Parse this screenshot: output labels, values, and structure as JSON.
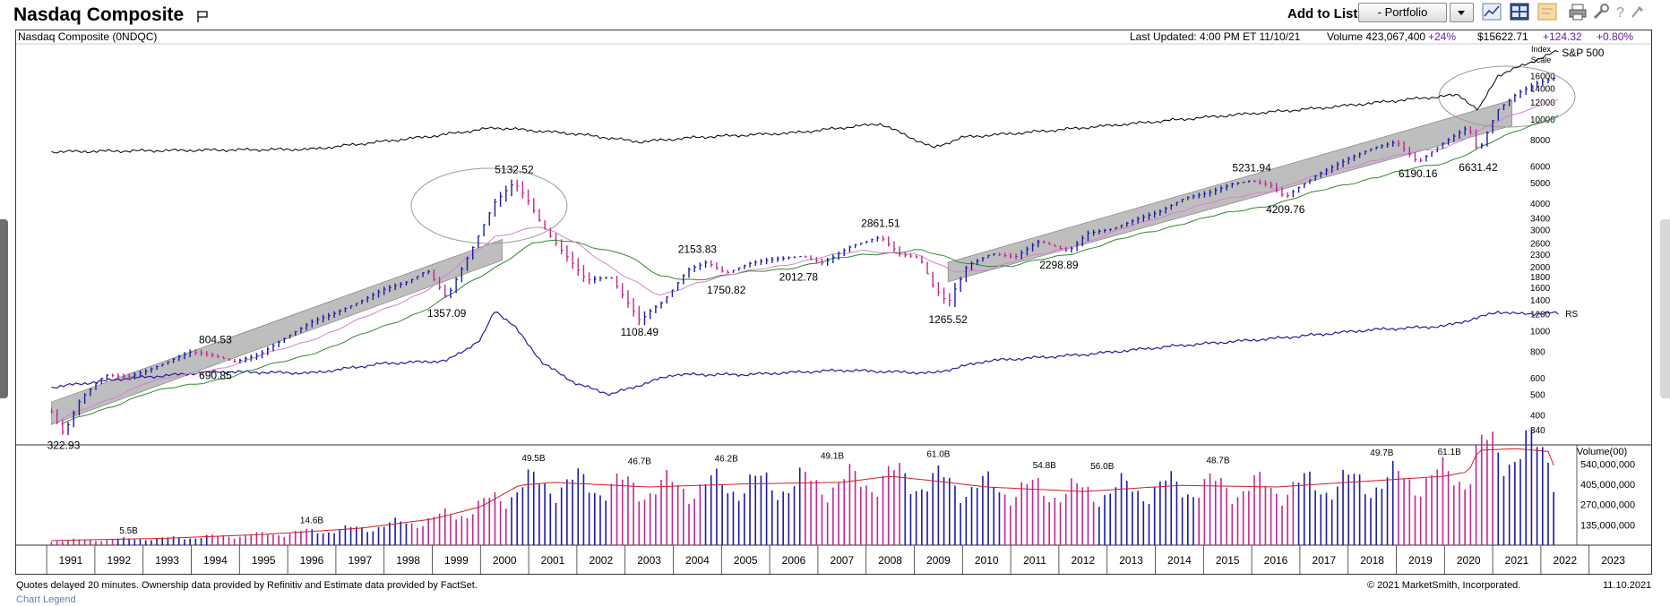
{
  "header": {
    "title": "Nasdaq Composite",
    "add_to_list_label": "Add to List:",
    "portfolio_value": "- Portfolio",
    "toolbar_icons": [
      "chart-style-icon",
      "layout-icon",
      "note-icon",
      "print-icon",
      "tools-icon",
      "help-icon",
      "more-icon"
    ]
  },
  "info_bar": {
    "symbol_label": "Nasdaq Composite   (0NDQC)",
    "last_updated": "Last Updated: 4:00 PM ET 11/10/21",
    "volume": "Volume 423,067,400",
    "volume_pct": "+24%",
    "price": "$15622.71",
    "change": "+124.32",
    "change_pct": "+0.80%"
  },
  "footer": {
    "note": "Quotes delayed 20 minutes. Ownership data provided by Refinitiv and Estimate data provided by FactSet.",
    "copyright": "© 2021 MarketSmith, Incorporated.",
    "date": "11.10.2021",
    "legend_link": "Chart Legend"
  },
  "colors": {
    "up_bar": "#1a1aa6",
    "down_bar": "#c2278f",
    "rs_line": "#2a1aa0",
    "ma_short": "#d97fd0",
    "ma_long": "#2e8b2e",
    "volume_avg": "#d32020",
    "channel_fill": "#b3b3b3",
    "sp500_line": "#000000"
  },
  "chart_data": {
    "type": "line",
    "title": "Nasdaq Composite",
    "scale": "log",
    "y_axis_title": "Index Scale",
    "y_ticks": [
      340,
      400,
      500,
      600,
      800,
      1000,
      1200,
      1400,
      1600,
      1800,
      2000,
      2300,
      2600,
      3000,
      3400,
      4000,
      5000,
      6000,
      8000,
      10000,
      12000,
      14000,
      16000
    ],
    "x_ticks": [
      "1991",
      "1992",
      "1993",
      "1994",
      "1995",
      "1996",
      "1997",
      "1998",
      "1999",
      "2000",
      "2001",
      "2002",
      "2003",
      "2004",
      "2005",
      "2006",
      "2007",
      "2008",
      "2009",
      "2010",
      "2011",
      "2012",
      "2013",
      "2014",
      "2015",
      "2016",
      "2017",
      "2018",
      "2019",
      "2020",
      "2021",
      "2022",
      "2023"
    ],
    "price_series": {
      "name": "Nasdaq Composite",
      "x": [
        1990.6,
        1990.85,
        1991.2,
        1991.7,
        1992.2,
        1992.6,
        1993.0,
        1993.5,
        1994.0,
        1994.4,
        1994.9,
        1995.5,
        1996.0,
        1996.5,
        1997.0,
        1997.5,
        1998.0,
        1998.4,
        1998.8,
        1999.3,
        1999.8,
        2000.2,
        2000.5,
        2000.8,
        2001.2,
        2001.7,
        2002.2,
        2002.8,
        2003.3,
        2003.8,
        2004.2,
        2004.6,
        2005.1,
        2005.6,
        2006.2,
        2006.6,
        2007.2,
        2007.8,
        2008.2,
        2008.6,
        2008.9,
        2009.2,
        2009.6,
        2010.1,
        2010.6,
        2011.1,
        2011.7,
        2012.1,
        2012.6,
        2013.1,
        2013.6,
        2014.1,
        2014.6,
        2015.1,
        2015.5,
        2015.9,
        2016.2,
        2016.8,
        2017.4,
        2018.0,
        2018.5,
        2018.95,
        2019.5,
        2020.0,
        2020.2,
        2020.6,
        2021.0,
        2021.4,
        2021.86
      ],
      "y": [
        420,
        330,
        480,
        620,
        600,
        640,
        700,
        790,
        760,
        720,
        780,
        950,
        1100,
        1200,
        1350,
        1550,
        1700,
        1950,
        1450,
        2400,
        4100,
        5000,
        4000,
        3000,
        2300,
        1700,
        1800,
        1150,
        1400,
        1950,
        2100,
        1850,
        2050,
        2150,
        2250,
        2100,
        2550,
        2800,
        2300,
        2200,
        1560,
        1300,
        2000,
        2300,
        2250,
        2700,
        2400,
        2900,
        3000,
        3300,
        3600,
        4200,
        4500,
        5000,
        5200,
        4900,
        4300,
        5300,
        6200,
        7200,
        7800,
        6300,
        7900,
        9300,
        7000,
        11000,
        13000,
        14500,
        15600
      ]
    },
    "sp500_series": {
      "name": "S&P 500",
      "x": [
        1990.6,
        1993.0,
        1996.0,
        1998.5,
        1999.8,
        2001.5,
        2002.8,
        2004.0,
        2006.0,
        2007.8,
        2008.9,
        2009.5,
        2011.0,
        2013.0,
        2015.0,
        2017.0,
        2018.95,
        2019.8,
        2020.2,
        2020.6,
        2021.86
      ],
      "y": [
        7000,
        7100,
        7200,
        8300,
        9100,
        8500,
        7800,
        8200,
        8600,
        9500,
        7300,
        8200,
        8700,
        9500,
        10400,
        11300,
        12500,
        13000,
        11000,
        16000,
        21000
      ]
    },
    "rs_series": {
      "name": "RS",
      "x": [
        1990.6,
        1992.0,
        1994.0,
        1996.0,
        1997.5,
        1998.8,
        1999.5,
        1999.8,
        2000.2,
        2000.8,
        2001.5,
        2002.2,
        2003.5,
        2005.0,
        2007.0,
        2008.9,
        2010.0,
        2012.0,
        2014.0,
        2016.0,
        2018.0,
        2019.5,
        2020.2,
        2020.6,
        2021.0,
        2021.86
      ],
      "y": [
        540,
        590,
        640,
        630,
        700,
        720,
        900,
        1250,
        1050,
        700,
        560,
        500,
        620,
        620,
        650,
        630,
        720,
        770,
        850,
        920,
        1010,
        1050,
        1150,
        1230,
        1200,
        1210
      ]
    },
    "ma_short_series": {
      "x": [
        1990.8,
        1992.5,
        1994.5,
        1996.5,
        1998.5,
        1999.8,
        2000.7,
        2001.5,
        2002.5,
        2003.2,
        2004.0,
        2006.0,
        2007.5,
        2008.5,
        2009.3,
        2010.0,
        2012.0,
        2014.0,
        2016.0,
        2018.0,
        2019.5,
        2020.5,
        2021.86
      ],
      "y": [
        380,
        560,
        700,
        1000,
        1600,
        2800,
        3100,
        2600,
        1800,
        1450,
        1700,
        2100,
        2400,
        2300,
        1900,
        1950,
        2600,
        3700,
        4700,
        6400,
        7300,
        9500,
        12500
      ]
    },
    "ma_long_series": {
      "x": [
        1990.8,
        1992.5,
        1994.5,
        1996.5,
        1998.5,
        1999.8,
        2000.6,
        2001.4,
        2002.5,
        2003.2,
        2004.0,
        2006.0,
        2007.5,
        2008.6,
        2009.5,
        2010.5,
        2012.0,
        2014.0,
        2016.0,
        2018.0,
        2019.5,
        2020.5,
        2021.86
      ],
      "y": [
        360,
        500,
        620,
        850,
        1300,
        2000,
        2600,
        2650,
        2300,
        1800,
        1750,
        2000,
        2300,
        2400,
        2100,
        2000,
        2400,
        3200,
        4000,
        5300,
        6200,
        7800,
        10500
      ]
    },
    "channels": [
      {
        "x": [
          1990.6,
          1999.95
        ],
        "upper": [
          460,
          2700
        ],
        "lower": [
          360,
          2150
        ]
      },
      {
        "x": [
          2009.2,
          2020.9
        ],
        "upper": [
          2100,
          12300
        ],
        "lower": [
          1700,
          9300
        ]
      }
    ],
    "annotations": [
      {
        "text": "5132.52",
        "x": 2000.2,
        "y": 5132.52,
        "pos": "above"
      },
      {
        "text": "2861.51",
        "x": 2007.8,
        "y": 2861.51,
        "pos": "above"
      },
      {
        "text": "2153.83",
        "x": 2004.0,
        "y": 2153.83,
        "pos": "above"
      },
      {
        "text": "5231.94",
        "x": 2015.5,
        "y": 5231.94,
        "pos": "above"
      },
      {
        "text": "804.53",
        "x": 1994.0,
        "y": 804.53,
        "pos": "above"
      },
      {
        "text": "690.85",
        "x": 1994.0,
        "y": 690.85,
        "pos": "below"
      },
      {
        "text": "1357.09",
        "x": 1998.8,
        "y": 1357.09,
        "pos": "below"
      },
      {
        "text": "1108.49",
        "x": 2002.8,
        "y": 1108.49,
        "pos": "below"
      },
      {
        "text": "1750.82",
        "x": 2004.6,
        "y": 1750.82,
        "pos": "below"
      },
      {
        "text": "2012.78",
        "x": 2006.1,
        "y": 2012.78,
        "pos": "below"
      },
      {
        "text": "1265.52",
        "x": 2009.2,
        "y": 1265.52,
        "pos": "below"
      },
      {
        "text": "2298.89",
        "x": 2011.5,
        "y": 2298.89,
        "pos": "below"
      },
      {
        "text": "4209.76",
        "x": 2016.2,
        "y": 4209.76,
        "pos": "below"
      },
      {
        "text": "6190.16",
        "x": 2018.95,
        "y": 6190.16,
        "pos": "below"
      },
      {
        "text": "6631.42",
        "x": 2020.2,
        "y": 6631.42,
        "pos": "below"
      },
      {
        "text": "322.93",
        "x": 1990.85,
        "y": 322.93,
        "pos": "below"
      }
    ],
    "line_labels": {
      "sp500": "S&P 500",
      "rs": "RS"
    },
    "volume": {
      "axis_title": "Volume(00)",
      "y_ticks": [
        "540,000,000",
        "405,000,000",
        "270,000,000",
        "135,000,000"
      ],
      "y_tick_values": [
        540000000,
        405000000,
        270000000,
        135000000
      ],
      "ymax": 650000000,
      "labels": [
        {
          "text": "5.5B",
          "x": 1992.2
        },
        {
          "text": "14.6B",
          "x": 1996.0
        },
        {
          "text": "49.5B",
          "x": 2000.6
        },
        {
          "text": "46.7B",
          "x": 2002.8
        },
        {
          "text": "46.2B",
          "x": 2004.6
        },
        {
          "text": "49.1B",
          "x": 2006.8
        },
        {
          "text": "61.0B",
          "x": 2009.0
        },
        {
          "text": "54.8B",
          "x": 2011.2
        },
        {
          "text": "56.0B",
          "x": 2012.4
        },
        {
          "text": "48.7B",
          "x": 2014.8
        },
        {
          "text": "49.7B",
          "x": 2018.2
        },
        {
          "text": "61.1B",
          "x": 2019.6
        }
      ],
      "anchors_x": [
        1990.6,
        1993.0,
        1995.0,
        1997.0,
        1998.5,
        1999.5,
        2000.3,
        2001.0,
        2003.0,
        2005.0,
        2007.0,
        2008.0,
        2008.9,
        2010.0,
        2012.0,
        2014.0,
        2016.0,
        2018.0,
        2019.5,
        2020.0,
        2020.2,
        2021.0,
        2021.7,
        2021.86
      ],
      "anchors_y": [
        30000000,
        45000000,
        70000000,
        110000000,
        170000000,
        250000000,
        390000000,
        410000000,
        380000000,
        400000000,
        410000000,
        450000000,
        420000000,
        380000000,
        350000000,
        390000000,
        380000000,
        420000000,
        450000000,
        480000000,
        620000000,
        630000000,
        610000000,
        390000000
      ]
    }
  }
}
